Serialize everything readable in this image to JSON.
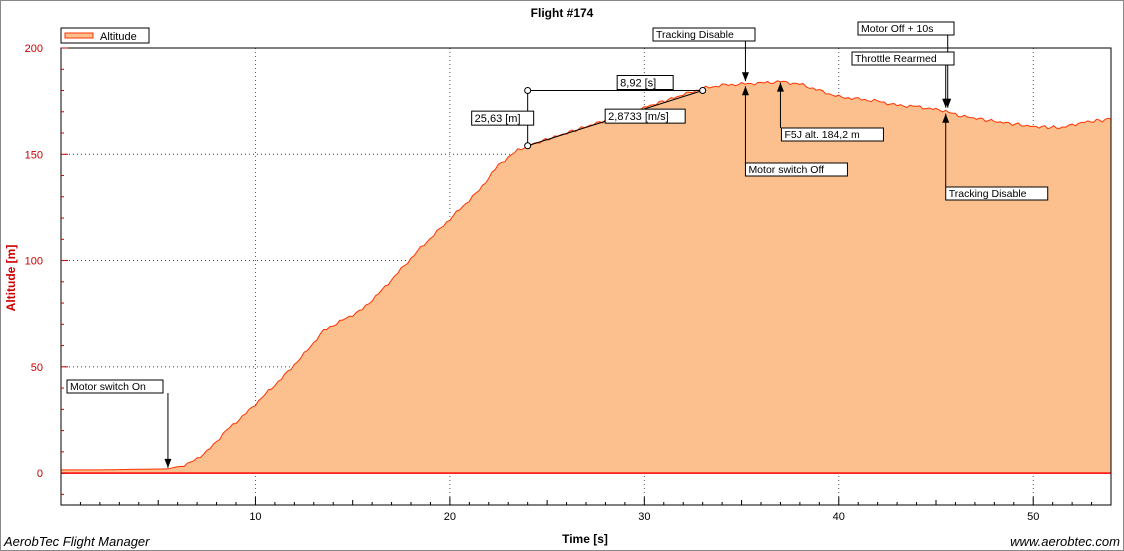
{
  "chart_data": {
    "type": "area",
    "title": "Flight #174",
    "xlabel": "Time [s]",
    "ylabel": "Altitude [m]",
    "xlim": [
      0,
      54
    ],
    "ylim": [
      -15,
      200
    ],
    "x_ticks": [
      10,
      20,
      30,
      40,
      50
    ],
    "y_ticks": [
      0,
      50,
      100,
      150,
      200
    ],
    "grid": true,
    "legend_position": "top-left",
    "series": [
      {
        "name": "Altitude",
        "line_color": "#ff3300",
        "fill_color": "#fbc08e",
        "x": [
          0,
          2,
          4,
          5.5,
          6.5,
          7.5,
          8.5,
          9.5,
          10.5,
          11.5,
          12.5,
          13.5,
          14.5,
          15.5,
          16.5,
          17.5,
          18.5,
          19.5,
          20.5,
          21.5,
          22.5,
          23.5,
          24,
          26,
          28,
          30,
          32,
          33,
          34,
          35,
          36,
          37,
          38,
          39,
          40,
          41,
          42,
          43,
          44,
          45,
          45.5,
          46,
          48,
          50,
          51.5,
          52.5,
          54
        ],
        "y": [
          1.5,
          1.5,
          1.8,
          2.0,
          4,
          10,
          20,
          28,
          37,
          46,
          56,
          67,
          72,
          77,
          86,
          96,
          106,
          115,
          124,
          133,
          145,
          152,
          154,
          160,
          166,
          172,
          178,
          181,
          182.5,
          183,
          183.5,
          184.2,
          183,
          180,
          177,
          176,
          175,
          173,
          172.5,
          171,
          170.5,
          168.5,
          165.5,
          163,
          162.5,
          165,
          166.5
        ]
      }
    ],
    "annotations": [
      {
        "label": "Motor switch On",
        "x": 5.5,
        "y": 2.0
      },
      {
        "label": "Tracking Disable",
        "x": 35.2,
        "y": 182.5
      },
      {
        "label": "Motor switch Off",
        "x": 35.2,
        "y": 182.5
      },
      {
        "label": "F5J alt. 184,2 m",
        "x": 37,
        "y": 184.2
      },
      {
        "label": "Motor Off + 10s",
        "x": 45.5,
        "y": 170.5
      },
      {
        "label": "Throttle Rearmed",
        "x": 45.5,
        "y": 170.5
      },
      {
        "label": "Tracking Disable",
        "x": 45.5,
        "y": 170.5
      }
    ],
    "measurement": {
      "start": {
        "x": 24,
        "y": 154
      },
      "end": {
        "x": 33,
        "y": 180
      },
      "altitude_gain_label": "25,63 [m]",
      "duration_label": "8,92 [s]",
      "rate_label": "2,8733 [m/s]"
    }
  },
  "footer": {
    "left": "AerobTec Flight Manager",
    "right": "www.aerobtec.com"
  }
}
